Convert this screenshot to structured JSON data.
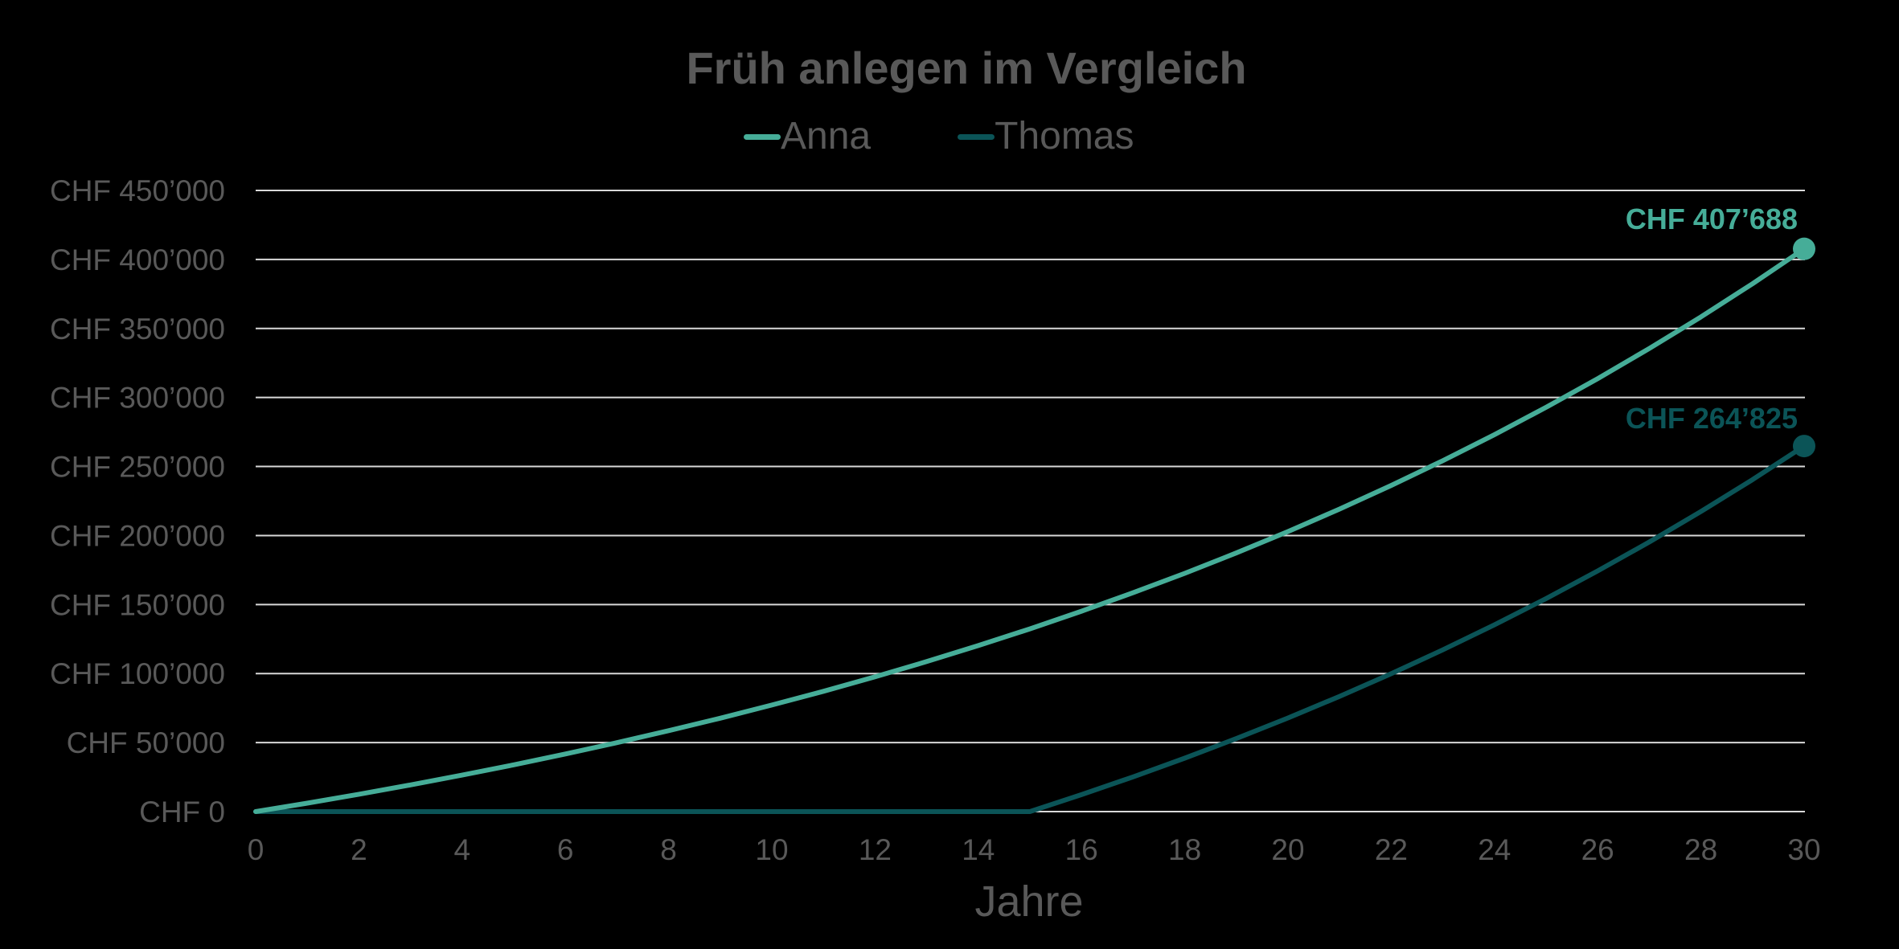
{
  "chart_data": {
    "type": "line",
    "title": "Früh anlegen im Vergleich",
    "xlabel": "Jahre",
    "ylabel": "",
    "xlim": [
      0,
      30
    ],
    "ylim": [
      0,
      450000
    ],
    "x_ticks": [
      "0",
      "2",
      "4",
      "6",
      "8",
      "10",
      "12",
      "14",
      "16",
      "18",
      "20",
      "22",
      "24",
      "26",
      "28",
      "30"
    ],
    "y_ticks": [
      "CHF 0",
      "CHF 50’000",
      "CHF 100’000",
      "CHF 150’000",
      "CHF 200’000",
      "CHF 250’000",
      "CHF 300’000",
      "CHF 350’000",
      "CHF 400’000",
      "CHF 450’000"
    ],
    "y_tick_values": [
      0,
      50000,
      100000,
      150000,
      200000,
      250000,
      300000,
      350000,
      400000,
      450000
    ],
    "grid": "horizontal",
    "legend_position": "top",
    "x": [
      0,
      1,
      2,
      3,
      4,
      5,
      6,
      7,
      8,
      9,
      10,
      11,
      12,
      13,
      14,
      15,
      16,
      17,
      18,
      19,
      20,
      21,
      22,
      23,
      24,
      25,
      26,
      27,
      28,
      29,
      30
    ],
    "series": [
      {
        "name": "Anna",
        "color": "#46ad98",
        "values": [
          0,
          6136,
          12580,
          19346,
          26448,
          33904,
          41737,
          49960,
          58596,
          67654,
          77178,
          87170,
          97676,
          108684,
          120259,
          132402,
          145166,
          158556,
          172621,
          187396,
          202897,
          219183,
          236279,
          254222,
          273073,
          292869,
          313648,
          335468,
          358370,
          382424,
          407688
        ],
        "end_label": "CHF 407’688"
      },
      {
        "name": "Thomas",
        "color": "#0b5457",
        "values": [
          0,
          0,
          0,
          0,
          0,
          0,
          0,
          0,
          0,
          0,
          0,
          0,
          0,
          0,
          0,
          0,
          12273,
          25160,
          38690,
          52896,
          67810,
          83474,
          99920,
          117192,
          135308,
          154355,
          174337,
          195333,
          217359,
          240470,
          264825
        ],
        "end_label": "CHF 264’825"
      }
    ]
  },
  "legend": {
    "items": [
      {
        "label": "Anna",
        "color": "#46ad98"
      },
      {
        "label": "Thomas",
        "color": "#0b5457"
      }
    ]
  },
  "colors": {
    "background": "#000000",
    "text": "#595959",
    "grid": "#d9d9d9"
  }
}
